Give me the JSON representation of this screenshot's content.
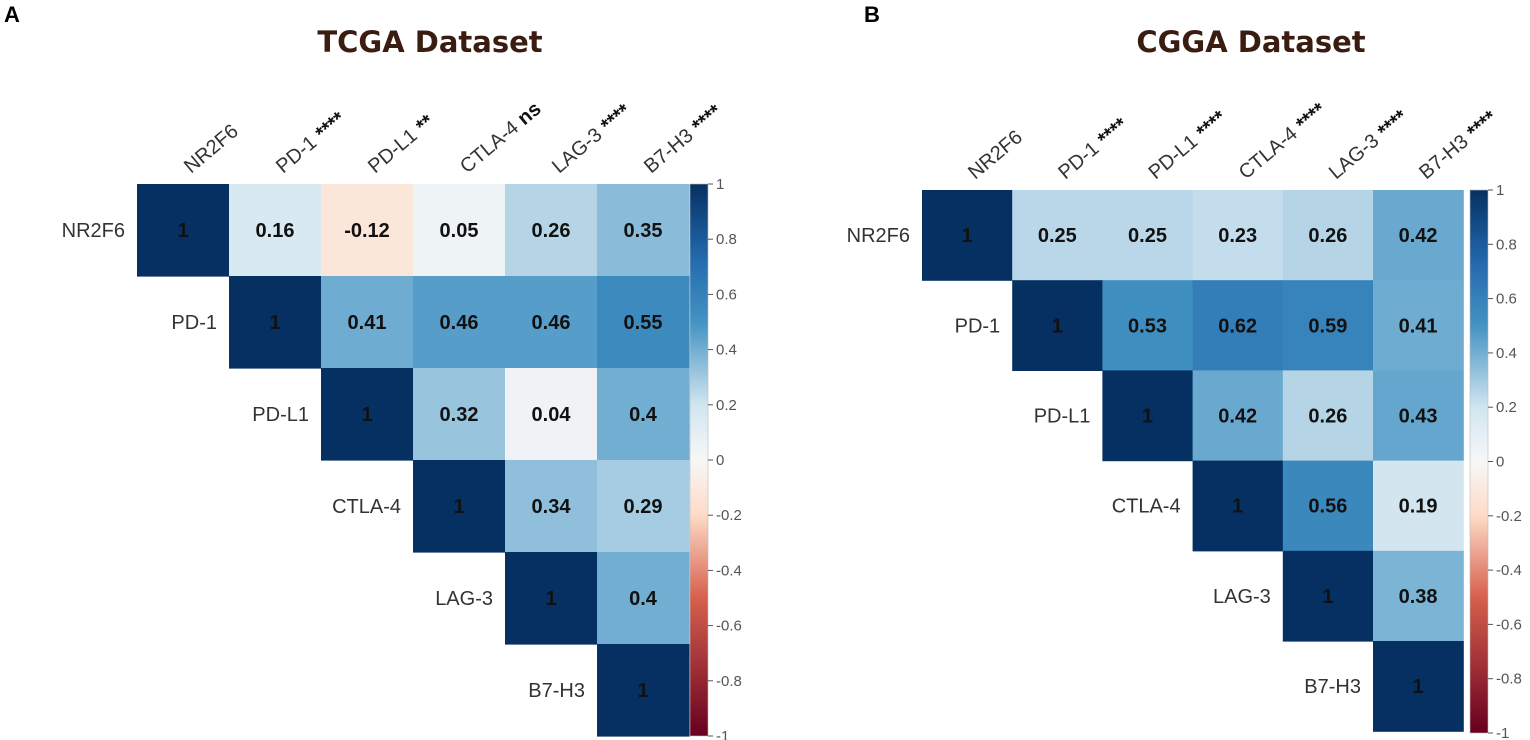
{
  "chart_data": [
    {
      "type": "heatmap",
      "panel_label": "A",
      "title": "TCGA Dataset",
      "variables": [
        "NR2F6",
        "PD-1",
        "PD-L1",
        "CTLA-4",
        "LAG-3",
        "B7-H3"
      ],
      "significance": [
        "",
        "****",
        "**",
        "ns",
        "****",
        "****"
      ],
      "matrix": [
        [
          1,
          0.16,
          -0.12,
          0.05,
          0.26,
          0.35
        ],
        [
          null,
          1,
          0.41,
          0.46,
          0.46,
          0.55
        ],
        [
          null,
          null,
          1,
          0.32,
          0.04,
          0.4
        ],
        [
          null,
          null,
          null,
          1,
          0.34,
          0.29
        ],
        [
          null,
          null,
          null,
          null,
          1,
          0.4
        ],
        [
          null,
          null,
          null,
          null,
          null,
          1
        ]
      ],
      "colorbar_ticks": [
        "1",
        "0.8",
        "0.6",
        "0.4",
        "0.2",
        "0",
        "-0.2",
        "-0.4",
        "-0.6",
        "-0.8",
        "-1"
      ],
      "value_range": [
        -1,
        1
      ]
    },
    {
      "type": "heatmap",
      "panel_label": "B",
      "title": "CGGA Dataset",
      "variables": [
        "NR2F6",
        "PD-1",
        "PD-L1",
        "CTLA-4",
        "LAG-3",
        "B7-H3"
      ],
      "significance": [
        "",
        "****",
        "****",
        "****",
        "****",
        "****"
      ],
      "matrix": [
        [
          1,
          0.25,
          0.25,
          0.23,
          0.26,
          0.42
        ],
        [
          null,
          1,
          0.53,
          0.62,
          0.59,
          0.41
        ],
        [
          null,
          null,
          1,
          0.42,
          0.26,
          0.43
        ],
        [
          null,
          null,
          null,
          1,
          0.56,
          0.19
        ],
        [
          null,
          null,
          null,
          null,
          1,
          0.38
        ],
        [
          null,
          null,
          null,
          null,
          null,
          1
        ]
      ],
      "colorbar_ticks": [
        "1",
        "0.8",
        "0.6",
        "0.4",
        "0.2",
        "0",
        "-0.2",
        "-0.4",
        "-0.6",
        "-0.8",
        "-1"
      ],
      "value_range": [
        -1,
        1
      ]
    }
  ],
  "colors": {
    "positive_max": "#053061",
    "positive_mid": "#4393c3",
    "neutral": "#f7f7f7",
    "negative_mid": "#d6604d",
    "negative_max": "#67001f"
  }
}
